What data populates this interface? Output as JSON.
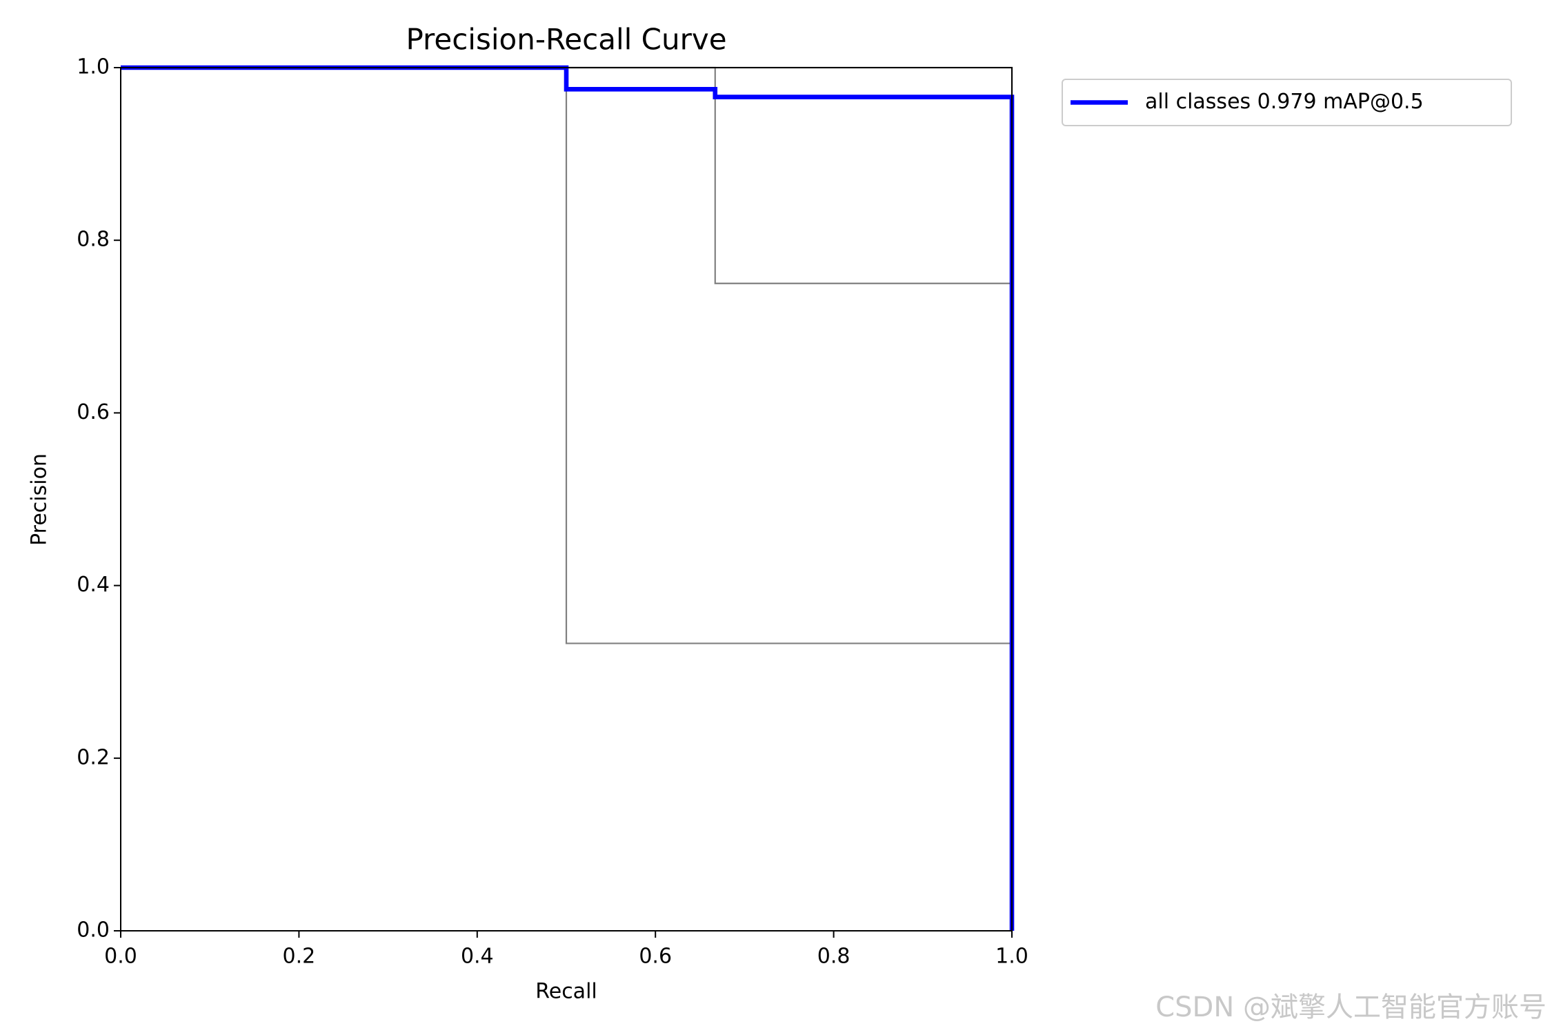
{
  "chart_data": {
    "type": "line",
    "title": "Precision-Recall Curve",
    "xlabel": "Recall",
    "ylabel": "Precision",
    "xlim": [
      0,
      1
    ],
    "ylim": [
      0,
      1
    ],
    "xticks": [
      {
        "value": 0,
        "label": "0.0"
      },
      0.2,
      0.4,
      0.6,
      0.8,
      {
        "value": 1,
        "label": "1.0"
      }
    ],
    "yticks": [
      {
        "value": 0,
        "label": "0.0"
      },
      0.2,
      0.4,
      0.6,
      0.8,
      {
        "value": 1,
        "label": "1.0"
      }
    ],
    "legend": "outside-upper-right",
    "series": [
      {
        "color": "#808080",
        "width": 1,
        "x": [
          0,
          0.5,
          0.5,
          1,
          1
        ],
        "values": [
          1,
          1,
          0.333,
          0.333,
          0
        ]
      },
      {
        "color": "#808080",
        "width": 1,
        "x": [
          0,
          0.667,
          0.667,
          1,
          1
        ],
        "values": [
          1,
          1,
          0.75,
          0.75,
          0
        ]
      },
      {
        "color": "#808080",
        "width": 1,
        "x": [
          0,
          1,
          1
        ],
        "values": [
          1,
          1,
          0
        ]
      },
      {
        "name": "all classes 0.979 mAP@0.5",
        "color": "#0000ff",
        "width": 3,
        "x": [
          0,
          0.5,
          0.5,
          0.667,
          0.667,
          1,
          1
        ],
        "values": [
          1,
          1,
          0.975,
          0.975,
          0.966,
          0.966,
          0
        ]
      }
    ]
  },
  "watermark": "CSDN @斌擎人工智能官方账号"
}
